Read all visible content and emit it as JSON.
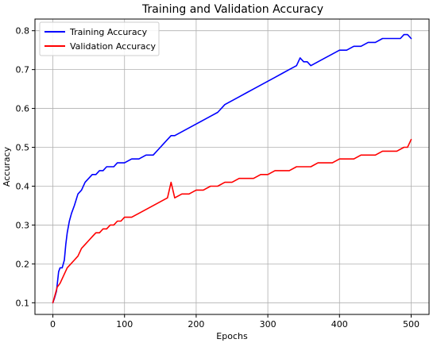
{
  "chart_data": {
    "type": "line",
    "title": "Training and Validation Accuracy",
    "xlabel": "Epochs",
    "ylabel": "Accuracy",
    "xlim": [
      -25,
      525
    ],
    "ylim": [
      0.07,
      0.83
    ],
    "xticks": [
      0,
      100,
      200,
      300,
      400,
      500
    ],
    "yticks": [
      0.1,
      0.2,
      0.3,
      0.4,
      0.5,
      0.6,
      0.7,
      0.8
    ],
    "ytick_labels": [
      "0.1",
      "0.2",
      "0.3",
      "0.4",
      "0.5",
      "0.6",
      "0.7",
      "0.8"
    ],
    "grid": true,
    "legend_position": "upper-left",
    "series": [
      {
        "name": "Training Accuracy",
        "color": "#0000ff",
        "x": [
          0,
          2,
          5,
          8,
          10,
          13,
          16,
          18,
          20,
          23,
          26,
          30,
          35,
          40,
          45,
          50,
          55,
          60,
          65,
          70,
          75,
          80,
          85,
          90,
          95,
          100,
          110,
          120,
          130,
          140,
          150,
          155,
          160,
          165,
          170,
          180,
          190,
          200,
          210,
          220,
          230,
          240,
          250,
          260,
          270,
          280,
          290,
          300,
          310,
          320,
          330,
          340,
          345,
          350,
          355,
          360,
          370,
          380,
          390,
          400,
          410,
          420,
          430,
          440,
          450,
          460,
          470,
          480,
          485,
          490,
          495,
          500
        ],
        "y": [
          0.1,
          0.11,
          0.13,
          0.18,
          0.19,
          0.19,
          0.21,
          0.25,
          0.28,
          0.31,
          0.33,
          0.35,
          0.38,
          0.39,
          0.41,
          0.42,
          0.43,
          0.43,
          0.44,
          0.44,
          0.45,
          0.45,
          0.45,
          0.46,
          0.46,
          0.46,
          0.47,
          0.47,
          0.48,
          0.48,
          0.5,
          0.51,
          0.52,
          0.53,
          0.53,
          0.54,
          0.55,
          0.56,
          0.57,
          0.58,
          0.59,
          0.61,
          0.62,
          0.63,
          0.64,
          0.65,
          0.66,
          0.67,
          0.68,
          0.69,
          0.7,
          0.71,
          0.73,
          0.72,
          0.72,
          0.71,
          0.72,
          0.73,
          0.74,
          0.75,
          0.75,
          0.76,
          0.76,
          0.77,
          0.77,
          0.78,
          0.78,
          0.78,
          0.78,
          0.79,
          0.79,
          0.78
        ]
      },
      {
        "name": "Validation Accuracy",
        "color": "#ff0000",
        "x": [
          0,
          3,
          6,
          10,
          15,
          20,
          25,
          30,
          35,
          40,
          45,
          50,
          55,
          60,
          65,
          70,
          75,
          80,
          85,
          90,
          95,
          100,
          110,
          120,
          130,
          140,
          150,
          160,
          165,
          170,
          180,
          190,
          200,
          210,
          220,
          230,
          240,
          250,
          260,
          270,
          280,
          290,
          300,
          310,
          320,
          330,
          340,
          350,
          360,
          370,
          380,
          390,
          400,
          410,
          420,
          430,
          440,
          450,
          460,
          470,
          480,
          490,
          495,
          500
        ],
        "y": [
          0.1,
          0.12,
          0.14,
          0.15,
          0.17,
          0.19,
          0.2,
          0.21,
          0.22,
          0.24,
          0.25,
          0.26,
          0.27,
          0.28,
          0.28,
          0.29,
          0.29,
          0.3,
          0.3,
          0.31,
          0.31,
          0.32,
          0.32,
          0.33,
          0.34,
          0.35,
          0.36,
          0.37,
          0.41,
          0.37,
          0.38,
          0.38,
          0.39,
          0.39,
          0.4,
          0.4,
          0.41,
          0.41,
          0.42,
          0.42,
          0.42,
          0.43,
          0.43,
          0.44,
          0.44,
          0.44,
          0.45,
          0.45,
          0.45,
          0.46,
          0.46,
          0.46,
          0.47,
          0.47,
          0.47,
          0.48,
          0.48,
          0.48,
          0.49,
          0.49,
          0.49,
          0.5,
          0.5,
          0.52
        ]
      }
    ]
  }
}
